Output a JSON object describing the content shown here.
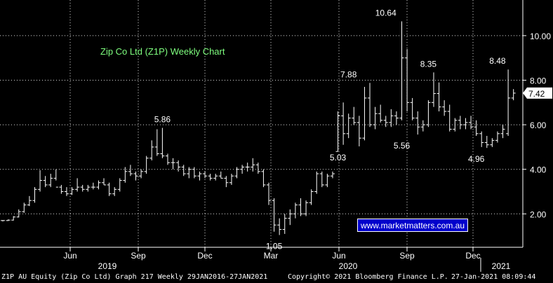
{
  "chart_data": {
    "type": "ohlc",
    "title": "Zip Co Ltd (Z1P) Weekly Chart",
    "watermark": "www.marketmatters.com.au",
    "colors": {
      "background": "#000000",
      "bars": "#ffffff",
      "grid": "#ffffff",
      "title": "#7fff7f",
      "watermark_bg": "#0000cc",
      "last_price_bg": "#ffffff"
    },
    "y_axis": {
      "ticks": [
        "2.00",
        "4.00",
        "6.00",
        "8.00",
        "10.00"
      ],
      "tick_values": [
        2,
        4,
        6,
        8,
        10
      ],
      "range": [
        0.5,
        11.6
      ],
      "position": "right",
      "grid": "dotted"
    },
    "x_axis": {
      "month_ticks": [
        {
          "label": "Jun",
          "date": "2019-06"
        },
        {
          "label": "Sep",
          "date": "2019-09"
        },
        {
          "label": "Dec",
          "date": "2019-12"
        },
        {
          "label": "Mar",
          "date": "2020-03"
        },
        {
          "label": "Jun",
          "date": "2020-06"
        },
        {
          "label": "Sep",
          "date": "2020-09"
        },
        {
          "label": "Dec",
          "date": "2020-12"
        }
      ],
      "year_labels": [
        {
          "label": "2019",
          "date": "2019-07"
        },
        {
          "label": "2020",
          "date": "2020-07"
        },
        {
          "label": "2021",
          "date": "2021-01"
        }
      ]
    },
    "last_price": "7.42",
    "annotations": [
      {
        "text": "5.86",
        "week": 30,
        "value": 5.86,
        "pos": "above"
      },
      {
        "text": "1.05",
        "week": 51,
        "value": 1.05,
        "pos": "below"
      },
      {
        "text": "7.88",
        "week": 65,
        "value": 7.88,
        "pos": "above"
      },
      {
        "text": "5.03",
        "week": 63,
        "value": 5.03,
        "pos": "below"
      },
      {
        "text": "10.64",
        "week": 72,
        "value": 10.64,
        "pos": "above"
      },
      {
        "text": "5.56",
        "week": 75,
        "value": 5.56,
        "pos": "below"
      },
      {
        "text": "8.35",
        "week": 80,
        "value": 8.35,
        "pos": "above"
      },
      {
        "text": "4.96",
        "week": 89,
        "value": 4.96,
        "pos": "below"
      },
      {
        "text": "8.48",
        "week": 93,
        "value": 8.48,
        "pos": "above"
      }
    ],
    "bars": [
      [
        1.7,
        1.72,
        1.66,
        1.7
      ],
      [
        1.7,
        1.75,
        1.68,
        1.72
      ],
      [
        1.72,
        1.9,
        1.7,
        1.86
      ],
      [
        1.86,
        2.2,
        1.84,
        2.1
      ],
      [
        2.1,
        2.5,
        2.05,
        2.4
      ],
      [
        2.4,
        2.8,
        2.35,
        2.6
      ],
      [
        2.6,
        3.2,
        2.5,
        3.1
      ],
      [
        3.1,
        3.96,
        3.0,
        3.5
      ],
      [
        3.5,
        3.7,
        3.2,
        3.3
      ],
      [
        3.3,
        3.8,
        3.2,
        3.6
      ],
      [
        3.6,
        4.0,
        3.5,
        3.2
      ],
      [
        3.2,
        3.3,
        2.9,
        3.0
      ],
      [
        3.0,
        3.2,
        2.8,
        2.9
      ],
      [
        2.9,
        3.2,
        2.85,
        3.1
      ],
      [
        3.1,
        3.6,
        3.0,
        3.2
      ],
      [
        3.2,
        3.3,
        3.0,
        3.1
      ],
      [
        3.1,
        3.3,
        3.0,
        3.2
      ],
      [
        3.2,
        3.4,
        3.1,
        3.2
      ],
      [
        3.2,
        3.5,
        3.1,
        3.4
      ],
      [
        3.4,
        3.6,
        3.3,
        3.3
      ],
      [
        3.3,
        3.4,
        2.8,
        2.9
      ],
      [
        2.9,
        3.2,
        2.8,
        3.1
      ],
      [
        3.1,
        3.6,
        3.0,
        3.5
      ],
      [
        3.5,
        4.1,
        3.4,
        3.9
      ],
      [
        3.9,
        4.2,
        3.7,
        3.8
      ],
      [
        3.8,
        3.9,
        3.5,
        3.7
      ],
      [
        3.7,
        4.0,
        3.6,
        3.9
      ],
      [
        3.9,
        4.6,
        3.8,
        4.5
      ],
      [
        4.5,
        5.3,
        4.4,
        5.0
      ],
      [
        5.0,
        5.8,
        4.6,
        4.7
      ],
      [
        4.7,
        5.86,
        4.5,
        4.6
      ],
      [
        4.6,
        4.7,
        4.2,
        4.3
      ],
      [
        4.3,
        4.5,
        4.0,
        4.3
      ],
      [
        4.3,
        4.4,
        3.9,
        4.1
      ],
      [
        4.1,
        4.2,
        3.7,
        3.8
      ],
      [
        3.8,
        4.1,
        3.6,
        4.0
      ],
      [
        4.0,
        4.1,
        3.6,
        3.7
      ],
      [
        3.7,
        3.9,
        3.5,
        3.8
      ],
      [
        3.8,
        3.9,
        3.6,
        3.7
      ],
      [
        3.7,
        3.8,
        3.5,
        3.6
      ],
      [
        3.6,
        3.8,
        3.5,
        3.7
      ],
      [
        3.7,
        3.9,
        3.6,
        3.6
      ],
      [
        3.6,
        3.7,
        3.2,
        3.4
      ],
      [
        3.4,
        3.8,
        3.3,
        3.7
      ],
      [
        3.7,
        4.1,
        3.6,
        4.0
      ],
      [
        4.0,
        4.2,
        3.8,
        4.1
      ],
      [
        4.1,
        4.3,
        3.9,
        4.1
      ],
      [
        4.1,
        4.5,
        3.9,
        4.2
      ],
      [
        4.2,
        4.3,
        3.8,
        3.9
      ],
      [
        3.9,
        4.0,
        3.2,
        3.3
      ],
      [
        3.3,
        3.4,
        2.4,
        2.6
      ],
      [
        2.6,
        2.7,
        1.2,
        1.5
      ],
      [
        1.5,
        1.8,
        1.05,
        1.3
      ],
      [
        1.3,
        2.0,
        1.1,
        1.8
      ],
      [
        1.8,
        2.2,
        1.5,
        2.0
      ],
      [
        2.0,
        2.5,
        1.8,
        2.4
      ],
      [
        2.4,
        2.7,
        1.9,
        2.0
      ],
      [
        2.0,
        2.6,
        1.9,
        2.5
      ],
      [
        2.5,
        3.1,
        2.4,
        3.0
      ],
      [
        3.0,
        3.9,
        2.9,
        3.8
      ],
      [
        3.8,
        3.9,
        3.2,
        3.3
      ],
      [
        3.3,
        3.8,
        3.2,
        3.7
      ],
      [
        3.7,
        3.9,
        3.6,
        3.8
      ],
      [
        4.8,
        6.6,
        4.8,
        6.4
      ],
      [
        6.4,
        7.0,
        5.1,
        5.6
      ],
      [
        5.6,
        6.5,
        5.4,
        6.3
      ],
      [
        6.3,
        6.8,
        6.0,
        6.1
      ],
      [
        6.1,
        6.4,
        5.03,
        5.4
      ],
      [
        5.4,
        7.7,
        5.3,
        7.2
      ],
      [
        7.2,
        7.88,
        5.9,
        6.0
      ],
      [
        6.0,
        6.8,
        5.8,
        6.5
      ],
      [
        6.5,
        6.9,
        6.1,
        6.2
      ],
      [
        6.2,
        6.4,
        5.9,
        6.1
      ],
      [
        6.1,
        6.7,
        5.9,
        6.4
      ],
      [
        6.4,
        6.6,
        6.0,
        6.3
      ],
      [
        6.3,
        10.64,
        6.2,
        9.0
      ],
      [
        9.0,
        9.4,
        6.6,
        7.0
      ],
      [
        7.0,
        7.2,
        6.2,
        6.3
      ],
      [
        6.3,
        6.6,
        5.56,
        5.9
      ],
      [
        5.9,
        6.2,
        5.7,
        6.0
      ],
      [
        6.0,
        7.1,
        5.9,
        7.0
      ],
      [
        7.0,
        8.35,
        6.8,
        7.4
      ],
      [
        7.4,
        7.9,
        6.6,
        6.8
      ],
      [
        6.8,
        7.1,
        6.4,
        6.6
      ],
      [
        6.6,
        6.9,
        5.7,
        5.8
      ],
      [
        5.8,
        6.3,
        5.7,
        6.2
      ],
      [
        6.2,
        6.4,
        5.8,
        6.0
      ],
      [
        6.0,
        6.3,
        5.8,
        6.1
      ],
      [
        6.1,
        6.4,
        5.8,
        5.9
      ],
      [
        5.9,
        6.2,
        5.5,
        5.6
      ],
      [
        5.6,
        5.7,
        5.0,
        5.2
      ],
      [
        5.2,
        5.5,
        4.96,
        5.1
      ],
      [
        5.1,
        5.4,
        5.0,
        5.3
      ],
      [
        5.3,
        5.7,
        5.2,
        5.6
      ],
      [
        5.6,
        6.0,
        5.4,
        5.8
      ],
      [
        5.6,
        8.48,
        5.5,
        7.2
      ],
      [
        7.2,
        7.6,
        7.1,
        7.42
      ]
    ]
  },
  "footer": {
    "left": "Z1P AU Equity (Zip Co Ltd) Graph 217  Weekly 29JAN2016-27JAN2021",
    "center": "Copyright© 2021 Bloomberg Finance L.P.",
    "right": "27-Jan-2021 08:09:44"
  }
}
